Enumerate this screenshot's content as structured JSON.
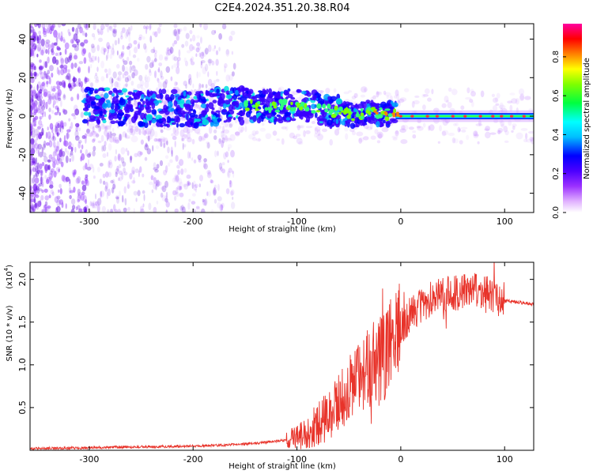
{
  "title": "C2E4.2024.351.20.38.R04",
  "chart_data": [
    {
      "type": "heatmap",
      "xlabel": "Height of straight line (km)",
      "ylabel": "Frequency (Hz)",
      "xlim": [
        -357,
        128
      ],
      "ylim": [
        -50,
        48
      ],
      "x_ticks": [
        -300,
        -200,
        -100,
        0,
        100
      ],
      "y_ticks": [
        -40,
        -20,
        0,
        20,
        40
      ],
      "colorbar": {
        "label": "Normalized spectral amplitude",
        "range": [
          0,
          0.97
        ],
        "ticks": [
          "0.0",
          "0.2",
          "0.4",
          "0.6",
          "0.8"
        ]
      },
      "features": {
        "noise_region_x": [
          -357,
          -160
        ],
        "ridge_start_x": -305,
        "ridge_end_x": 128,
        "ridge_center_freq": [
          [
            -305,
            6
          ],
          [
            -250,
            4
          ],
          [
            -200,
            4
          ],
          [
            -150,
            6
          ],
          [
            -120,
            5
          ],
          [
            -100,
            6
          ],
          [
            -80,
            4
          ],
          [
            -60,
            2
          ],
          [
            -45,
            0
          ],
          [
            -30,
            2
          ],
          [
            -10,
            1
          ],
          [
            0,
            1
          ],
          [
            50,
            0
          ],
          [
            128,
            0
          ]
        ]
      }
    },
    {
      "type": "line",
      "xlabel": "Height of straight line (km)",
      "ylabel": "SNR (10 * v/v)",
      "yscale_label": "(x10",
      "yscale_exp": "4",
      "xlim": [
        -357,
        128
      ],
      "ylim": [
        0,
        2.2
      ],
      "x_ticks": [
        -300,
        -200,
        -100,
        0,
        100
      ],
      "y_ticks": [
        0.5,
        1.0,
        1.5,
        2.0
      ],
      "color": "#e8332a",
      "envelope": [
        [
          -357,
          0.02
        ],
        [
          -300,
          0.03
        ],
        [
          -250,
          0.04
        ],
        [
          -200,
          0.05
        ],
        [
          -170,
          0.06
        ],
        [
          -140,
          0.08
        ],
        [
          -110,
          0.12
        ],
        [
          -95,
          0.18
        ],
        [
          -80,
          0.3
        ],
        [
          -70,
          0.4
        ],
        [
          -60,
          0.55
        ],
        [
          -50,
          0.7
        ],
        [
          -40,
          0.85
        ],
        [
          -30,
          0.95
        ],
        [
          -20,
          1.05
        ],
        [
          -12,
          1.2
        ],
        [
          -5,
          1.35
        ],
        [
          0,
          1.45
        ],
        [
          10,
          1.6
        ],
        [
          20,
          1.7
        ],
        [
          35,
          1.8
        ],
        [
          50,
          1.85
        ],
        [
          70,
          1.87
        ],
        [
          90,
          1.8
        ],
        [
          100,
          1.75
        ],
        [
          128,
          1.71
        ]
      ]
    }
  ]
}
